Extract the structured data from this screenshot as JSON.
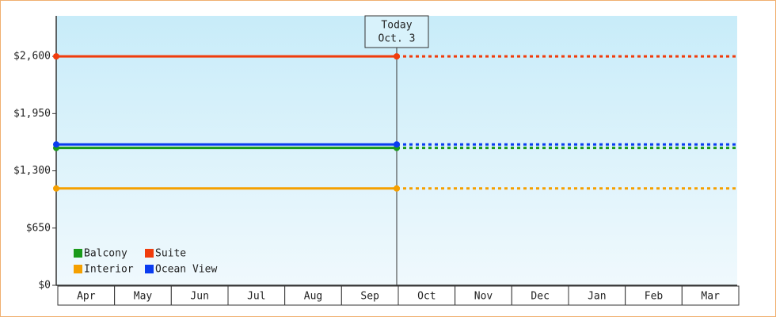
{
  "chart_data": {
    "type": "line",
    "today_label": "Today",
    "today_date": "Oct. 3",
    "categories": [
      "Apr",
      "May",
      "Jun",
      "Jul",
      "Aug",
      "Sep",
      "Oct",
      "Nov",
      "Dec",
      "Jan",
      "Feb",
      "Mar"
    ],
    "x": [
      0,
      6
    ],
    "xlim": [
      0,
      12
    ],
    "series": [
      {
        "name": "Balcony",
        "color": "#1a9a1a",
        "values": [
          1560,
          1560
        ]
      },
      {
        "name": "Suite",
        "color": "#f03c0c",
        "values": [
          2600,
          2600
        ]
      },
      {
        "name": "Interior",
        "color": "#f5a000",
        "values": [
          1100,
          1100
        ]
      },
      {
        "name": "Ocean View",
        "color": "#0a3cf0",
        "values": [
          1600,
          1600
        ]
      }
    ],
    "ylim": [
      0,
      3060
    ],
    "yticks": [
      {
        "value": 0,
        "label": "$0"
      },
      {
        "value": 650,
        "label": "$650"
      },
      {
        "value": 1300,
        "label": "$1,300"
      },
      {
        "value": 1950,
        "label": "$1,950"
      },
      {
        "value": 2600,
        "label": "$2,600"
      }
    ],
    "legend": "bottom-left"
  }
}
